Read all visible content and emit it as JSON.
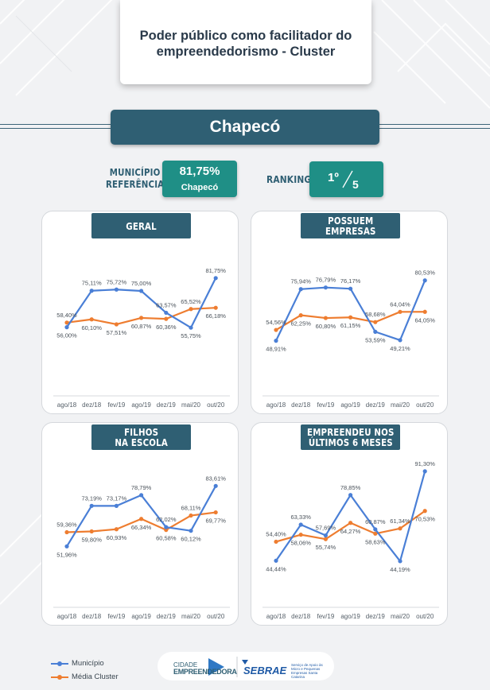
{
  "header": {
    "title": "Poder público como facilitador do empreendedorismo - Cluster",
    "city": "Chapecó"
  },
  "reference": {
    "label_line1": "MUNICÍPIO",
    "label_line2": "REFERÊNCIA",
    "value": "81,75%",
    "city": "Chapecó"
  },
  "ranking": {
    "label": "RANKING",
    "position": "1º",
    "total": "5"
  },
  "colors": {
    "municipio": "#4a7fd6",
    "media_cluster": "#ee7d30",
    "dark_teal": "#2f5f73",
    "teal": "#1f8f86"
  },
  "legend": {
    "municipio": "Município",
    "media_cluster": "Média Cluster"
  },
  "logos": {
    "cidade_line1": "CIDADE",
    "cidade_line2": "EMPREENDEDORA",
    "sebrae": "SEBRAE",
    "sebrae_sub": "Serviço de Apoio às Micro e Pequenas Empresas Santa Catarina"
  },
  "chart_data": [
    {
      "type": "line",
      "title_lines": [
        "GERAL"
      ],
      "categories": [
        "ago/18",
        "dez/18",
        "fev/19",
        "ago/19",
        "dez/19",
        "mai/20",
        "out/20"
      ],
      "series": [
        {
          "name": "Município",
          "values": [
            56.0,
            75.11,
            75.72,
            75.0,
            63.57,
            55.75,
            81.75
          ],
          "labels": [
            "56,00%",
            "75,11%",
            "75,72%",
            "75,00%",
            "63,57%",
            "55,75%",
            "81,75%"
          ]
        },
        {
          "name": "Média Cluster",
          "values": [
            58.4,
            60.1,
            57.51,
            60.87,
            60.36,
            65.52,
            66.18
          ],
          "labels": [
            "58,40%",
            "60,10%",
            "57,51%",
            "60,87%",
            "60,36%",
            "65,52%",
            "66,18%"
          ]
        }
      ],
      "ylim": [
        20,
        100
      ]
    },
    {
      "type": "line",
      "title_lines": [
        "POSSUEM",
        "EMPRESAS"
      ],
      "categories": [
        "ago/18",
        "dez/18",
        "fev/19",
        "ago/19",
        "dez/19",
        "mai/20",
        "out/20"
      ],
      "series": [
        {
          "name": "Município",
          "values": [
            48.91,
            75.94,
            76.79,
            76.17,
            53.59,
            49.21,
            80.53
          ],
          "labels": [
            "48,91%",
            "75,94%",
            "76,79%",
            "76,17%",
            "53,59%",
            "49,21%",
            "80,53%"
          ]
        },
        {
          "name": "Média Cluster",
          "values": [
            54.56,
            62.25,
            60.8,
            61.15,
            58.68,
            64.04,
            64.05
          ],
          "labels": [
            "54,56%",
            "62,25%",
            "60,80%",
            "61,15%",
            "58,68%",
            "64,04%",
            "64,05%"
          ]
        }
      ],
      "ylim": [
        20,
        100
      ]
    },
    {
      "type": "line",
      "title_lines": [
        "FILHOS",
        "NA ESCOLA"
      ],
      "categories": [
        "ago/18",
        "dez/18",
        "fev/19",
        "ago/19",
        "dez/19",
        "mai/20",
        "out/20"
      ],
      "series": [
        {
          "name": "Município",
          "values": [
            51.96,
            73.19,
            73.17,
            78.79,
            62.02,
            60.12,
            83.61
          ],
          "labels": [
            "51,96%",
            "73,19%",
            "73,17%",
            "78,79%",
            "62,02%",
            "60,12%",
            "83,61%"
          ]
        },
        {
          "name": "Média Cluster",
          "values": [
            59.36,
            59.8,
            60.93,
            66.34,
            60.58,
            68.11,
            69.77
          ],
          "labels": [
            "59,36%",
            "59,80%",
            "60,93%",
            "66,34%",
            "60,58%",
            "68,11%",
            "69,77%"
          ]
        }
      ],
      "ylim": [
        20,
        100
      ]
    },
    {
      "type": "line",
      "title_lines": [
        "EMPREENDEU NOS",
        "ÚLTIMOS 6 MESES"
      ],
      "categories": [
        "ago/18",
        "dez/18",
        "fev/19",
        "ago/19",
        "dez/19",
        "mai/20",
        "out/20"
      ],
      "series": [
        {
          "name": "Município",
          "values": [
            44.44,
            63.33,
            57.69,
            78.85,
            60.87,
            44.19,
            91.3
          ],
          "labels": [
            "44,44%",
            "63,33%",
            "57,69%",
            "78,85%",
            "60,87%",
            "44,19%",
            "91,30%"
          ]
        },
        {
          "name": "Média Cluster",
          "values": [
            54.4,
            58.06,
            55.74,
            64.27,
            58.63,
            61.34,
            70.53
          ],
          "labels": [
            "54,40%",
            "58,06%",
            "55,74%",
            "64,27%",
            "58,63%",
            "61,34%",
            "70,53%"
          ]
        }
      ],
      "ylim": [
        20,
        100
      ]
    }
  ]
}
